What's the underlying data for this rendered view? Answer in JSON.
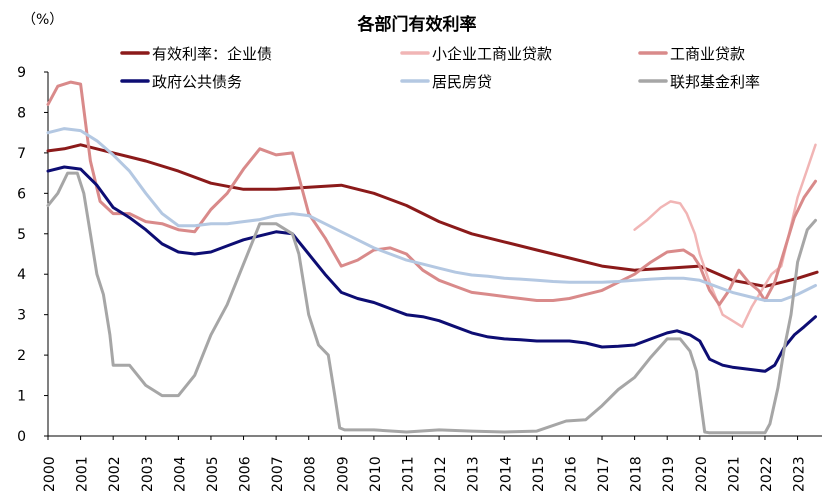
{
  "chart_data": {
    "type": "line",
    "title": "各部门有效利率",
    "unit_label": "（%）",
    "xlabel": "",
    "ylabel": "",
    "xlim": [
      2000.0,
      2023.75
    ],
    "ylim": [
      0,
      9
    ],
    "y_ticks": [
      0,
      1,
      2,
      3,
      4,
      5,
      6,
      7,
      8,
      9
    ],
    "x_ticks": [
      2000,
      2001,
      2002,
      2003,
      2004,
      2005,
      2006,
      2007,
      2008,
      2009,
      2010,
      2011,
      2012,
      2013,
      2014,
      2015,
      2016,
      2017,
      2018,
      2019,
      2020,
      2021,
      2022,
      2023
    ],
    "grid": false,
    "legend_position": "top",
    "series": [
      {
        "name": "有效利率：企业债",
        "color": "#8B1A1A",
        "width": 3,
        "x": [
          2000.0,
          2000.5,
          2001.0,
          2002.0,
          2003.0,
          2004.0,
          2005.0,
          2006.0,
          2007.0,
          2008.0,
          2009.0,
          2010.0,
          2011.0,
          2012.0,
          2013.0,
          2014.0,
          2015.0,
          2016.0,
          2017.0,
          2018.0,
          2019.0,
          2020.0,
          2021.0,
          2022.0,
          2023.0,
          2023.6
        ],
        "y": [
          7.05,
          7.1,
          7.2,
          7.0,
          6.8,
          6.55,
          6.25,
          6.1,
          6.1,
          6.15,
          6.2,
          6.0,
          5.7,
          5.3,
          5.0,
          4.8,
          4.6,
          4.4,
          4.2,
          4.1,
          4.15,
          4.2,
          3.85,
          3.7,
          3.9,
          4.05
        ]
      },
      {
        "name": "小企业工商业贷款",
        "color": "#F1B5B5",
        "width": 2.5,
        "x": [
          2018.0,
          2018.4,
          2018.8,
          2019.1,
          2019.4,
          2019.6,
          2019.85,
          2020.0,
          2020.3,
          2020.7,
          2021.0,
          2021.3,
          2021.6,
          2021.9,
          2022.2,
          2022.5,
          2022.8,
          2023.0,
          2023.3,
          2023.55
        ],
        "y": [
          5.1,
          5.35,
          5.65,
          5.8,
          5.75,
          5.5,
          5.0,
          4.5,
          3.8,
          3.0,
          2.85,
          2.7,
          3.2,
          3.6,
          4.0,
          4.2,
          5.2,
          5.9,
          6.6,
          7.2
        ]
      },
      {
        "name": "工商业贷款",
        "color": "#D98A8A",
        "width": 3,
        "x": [
          2000.0,
          2000.3,
          2000.7,
          2001.0,
          2001.3,
          2001.6,
          2002.0,
          2002.5,
          2003.0,
          2003.5,
          2004.0,
          2004.5,
          2005.0,
          2005.5,
          2006.0,
          2006.5,
          2007.0,
          2007.5,
          2008.0,
          2008.5,
          2009.0,
          2009.5,
          2010.0,
          2010.5,
          2011.0,
          2011.5,
          2012.0,
          2012.5,
          2013.0,
          2013.5,
          2014.0,
          2014.5,
          2015.0,
          2015.5,
          2016.0,
          2016.5,
          2017.0,
          2017.5,
          2018.0,
          2018.5,
          2019.0,
          2019.5,
          2019.8,
          2020.0,
          2020.3,
          2020.6,
          2020.9,
          2021.2,
          2021.5,
          2021.8,
          2022.0,
          2022.3,
          2022.6,
          2022.9,
          2023.2,
          2023.55
        ],
        "y": [
          8.2,
          8.65,
          8.75,
          8.7,
          6.8,
          5.8,
          5.5,
          5.5,
          5.3,
          5.25,
          5.1,
          5.05,
          5.6,
          6.0,
          6.6,
          7.1,
          6.95,
          7.0,
          5.5,
          4.9,
          4.2,
          4.35,
          4.6,
          4.65,
          4.5,
          4.1,
          3.85,
          3.7,
          3.55,
          3.5,
          3.45,
          3.4,
          3.35,
          3.35,
          3.4,
          3.5,
          3.6,
          3.8,
          4.0,
          4.3,
          4.55,
          4.6,
          4.45,
          4.2,
          3.6,
          3.25,
          3.6,
          4.1,
          3.8,
          3.6,
          3.35,
          3.8,
          4.6,
          5.4,
          5.9,
          6.3
        ]
      },
      {
        "name": "政府公共债务",
        "color": "#0D0D73",
        "width": 3,
        "x": [
          2000.0,
          2000.5,
          2001.0,
          2001.5,
          2002.0,
          2002.5,
          2003.0,
          2003.5,
          2004.0,
          2004.5,
          2005.0,
          2005.5,
          2006.0,
          2006.5,
          2007.0,
          2007.5,
          2008.0,
          2008.5,
          2009.0,
          2009.5,
          2010.0,
          2010.5,
          2011.0,
          2011.5,
          2012.0,
          2012.5,
          2013.0,
          2013.5,
          2014.0,
          2014.5,
          2015.0,
          2015.5,
          2016.0,
          2016.5,
          2017.0,
          2017.5,
          2018.0,
          2018.5,
          2019.0,
          2019.3,
          2019.7,
          2020.0,
          2020.3,
          2020.7,
          2021.0,
          2021.5,
          2022.0,
          2022.3,
          2022.6,
          2022.9,
          2023.2,
          2023.55
        ],
        "y": [
          6.55,
          6.65,
          6.6,
          6.2,
          5.65,
          5.4,
          5.1,
          4.75,
          4.55,
          4.5,
          4.55,
          4.7,
          4.85,
          4.95,
          5.05,
          5.0,
          4.5,
          4.0,
          3.55,
          3.4,
          3.3,
          3.15,
          3.0,
          2.95,
          2.85,
          2.7,
          2.55,
          2.45,
          2.4,
          2.38,
          2.35,
          2.35,
          2.35,
          2.3,
          2.2,
          2.22,
          2.25,
          2.4,
          2.55,
          2.6,
          2.5,
          2.35,
          1.9,
          1.75,
          1.7,
          1.65,
          1.6,
          1.75,
          2.2,
          2.5,
          2.7,
          2.95
        ]
      },
      {
        "name": "居民房贷",
        "color": "#B4C8E2",
        "width": 3,
        "x": [
          2000.0,
          2000.5,
          2001.0,
          2001.5,
          2002.0,
          2002.5,
          2003.0,
          2003.5,
          2004.0,
          2004.5,
          2005.0,
          2005.5,
          2006.0,
          2006.5,
          2007.0,
          2007.5,
          2008.0,
          2008.5,
          2009.0,
          2009.5,
          2010.0,
          2010.5,
          2011.0,
          2011.5,
          2012.0,
          2012.5,
          2013.0,
          2013.5,
          2014.0,
          2014.5,
          2015.0,
          2015.5,
          2016.0,
          2016.5,
          2017.0,
          2017.5,
          2018.0,
          2018.5,
          2019.0,
          2019.5,
          2020.0,
          2020.5,
          2021.0,
          2021.5,
          2022.0,
          2022.5,
          2023.0,
          2023.55
        ],
        "y": [
          7.5,
          7.6,
          7.55,
          7.3,
          6.95,
          6.55,
          6.0,
          5.5,
          5.2,
          5.2,
          5.25,
          5.25,
          5.3,
          5.35,
          5.45,
          5.5,
          5.45,
          5.25,
          5.05,
          4.85,
          4.65,
          4.5,
          4.35,
          4.25,
          4.15,
          4.05,
          3.98,
          3.95,
          3.9,
          3.88,
          3.85,
          3.82,
          3.8,
          3.8,
          3.8,
          3.82,
          3.85,
          3.88,
          3.9,
          3.9,
          3.85,
          3.7,
          3.55,
          3.45,
          3.35,
          3.35,
          3.5,
          3.72
        ]
      },
      {
        "name": "联邦基金利率",
        "color": "#A6A6A6",
        "width": 3,
        "x": [
          2000.0,
          2000.3,
          2000.6,
          2000.9,
          2001.1,
          2001.3,
          2001.5,
          2001.7,
          2001.9,
          2002.0,
          2002.5,
          2003.0,
          2003.5,
          2004.0,
          2004.5,
          2005.0,
          2005.5,
          2006.0,
          2006.5,
          2007.0,
          2007.5,
          2007.7,
          2008.0,
          2008.3,
          2008.6,
          2008.8,
          2008.95,
          2009.1,
          2010.0,
          2011.0,
          2012.0,
          2013.0,
          2014.0,
          2015.0,
          2015.9,
          2016.5,
          2017.0,
          2017.5,
          2018.0,
          2018.5,
          2019.0,
          2019.4,
          2019.7,
          2019.9,
          2020.15,
          2020.3,
          2021.0,
          2022.0,
          2022.15,
          2022.4,
          2022.6,
          2022.8,
          2023.0,
          2023.3,
          2023.55
        ],
        "y": [
          5.7,
          6.0,
          6.5,
          6.5,
          6.0,
          5.0,
          4.0,
          3.5,
          2.5,
          1.75,
          1.75,
          1.25,
          1.0,
          1.0,
          1.5,
          2.5,
          3.25,
          4.25,
          5.25,
          5.25,
          5.0,
          4.5,
          3.0,
          2.25,
          2.0,
          1.0,
          0.2,
          0.15,
          0.15,
          0.1,
          0.15,
          0.12,
          0.1,
          0.12,
          0.37,
          0.4,
          0.75,
          1.15,
          1.45,
          1.95,
          2.4,
          2.4,
          2.1,
          1.6,
          0.1,
          0.08,
          0.08,
          0.08,
          0.3,
          1.2,
          2.2,
          3.0,
          4.3,
          5.1,
          5.33
        ]
      }
    ]
  }
}
